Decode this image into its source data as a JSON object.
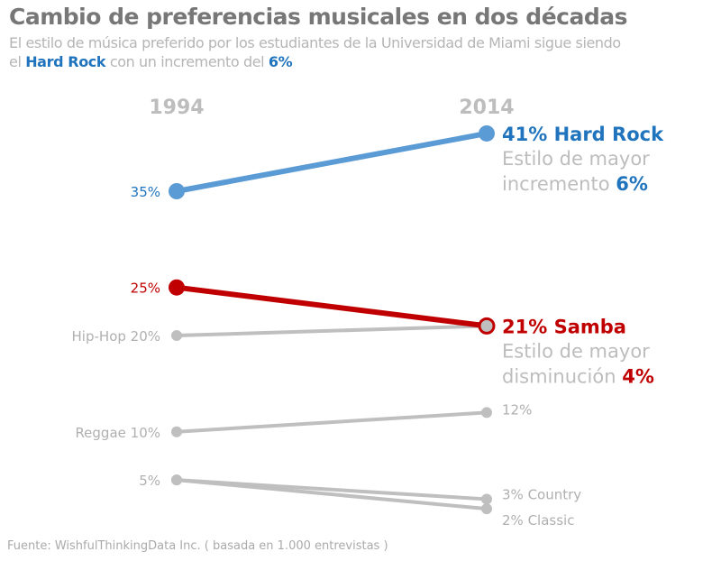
{
  "title": "Cambio de preferencias musicales en dos décadas",
  "subtitle": {
    "line1": "El estilo de música preferido por los estudiantes de la Universidad de Miami sigue siendo",
    "pre": "el ",
    "highlight1": "Hard Rock",
    "mid": " con un incremento del ",
    "highlight2": "6%"
  },
  "footer": "Fuente: WishfulThinkingData Inc. ( basada en 1.000 entrevistas )",
  "chart_data": {
    "type": "slope",
    "categories": [
      "1994",
      "2014"
    ],
    "series": [
      {
        "name": "Hard Rock",
        "values": [
          35,
          41
        ],
        "color": "#5b9bd5",
        "left_label": "35%",
        "right_label": "41% Hard Rock",
        "right_note": [
          "Estilo de mayor",
          "incremento "
        ],
        "right_note_value": "6%",
        "label_color": "#1f74bd"
      },
      {
        "name": "Samba",
        "values": [
          25,
          21
        ],
        "color": "#c00000",
        "left_label": "25%",
        "right_label": "21% Samba",
        "right_note": [
          "Estilo de mayor",
          "disminución "
        ],
        "right_note_value": "4%",
        "label_color": "#c00000"
      },
      {
        "name": "Hip-Hop",
        "values": [
          20,
          21
        ],
        "color": "#bfbfbf",
        "left_label": "Hip-Hop 20%",
        "right_label": ""
      },
      {
        "name": "Reggae",
        "values": [
          10,
          12
        ],
        "color": "#bfbfbf",
        "left_label": "Reggae 10%",
        "right_label": "12%"
      },
      {
        "name": "Country",
        "values": [
          5,
          3
        ],
        "color": "#bfbfbf",
        "left_label": "5%",
        "right_label": "3% Country"
      },
      {
        "name": "Classic",
        "values": [
          5,
          2
        ],
        "color": "#bfbfbf",
        "left_label": "",
        "right_label": "2% Classic"
      }
    ],
    "highlight_colors": {
      "increase": "#1f74bd",
      "decrease": "#c00000",
      "neutral": "#bfbfbf"
    }
  }
}
